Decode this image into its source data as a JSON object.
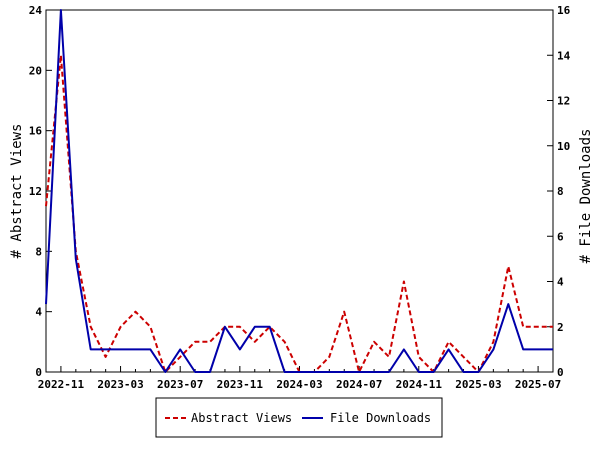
{
  "chart_data": {
    "type": "line",
    "x": [
      "2022-10",
      "2022-11",
      "2022-12",
      "2023-01",
      "2023-02",
      "2023-03",
      "2023-04",
      "2023-05",
      "2023-06",
      "2023-07",
      "2023-08",
      "2023-09",
      "2023-10",
      "2023-11",
      "2023-12",
      "2024-01",
      "2024-02",
      "2024-03",
      "2024-04",
      "2024-05",
      "2024-06",
      "2024-07",
      "2024-08",
      "2024-09",
      "2024-10",
      "2024-11",
      "2024-12",
      "2025-01",
      "2025-02",
      "2025-03",
      "2025-04",
      "2025-05",
      "2025-06",
      "2025-07",
      "2025-08"
    ],
    "x_ticks": [
      "2022-11",
      "2023-03",
      "2023-07",
      "2023-11",
      "2024-03",
      "2024-07",
      "2024-11",
      "2025-03",
      "2025-07"
    ],
    "series": [
      {
        "name": "Abstract Views",
        "axis": "left",
        "color": "#cc0000",
        "dash": true,
        "values": [
          11,
          21,
          8,
          3,
          1,
          3,
          4,
          3,
          0,
          1,
          2,
          2,
          3,
          3,
          2,
          3,
          2,
          0,
          0,
          1,
          4,
          0,
          2,
          1,
          6,
          1,
          0,
          2,
          1,
          0,
          2,
          7,
          3,
          3,
          3
        ]
      },
      {
        "name": "File Downloads",
        "axis": "right",
        "color": "#0000aa",
        "dash": false,
        "values": [
          3,
          16,
          5,
          1,
          1,
          1,
          1,
          1,
          0,
          1,
          0,
          0,
          2,
          1,
          2,
          2,
          0,
          0,
          0,
          0,
          0,
          0,
          0,
          0,
          1,
          0,
          0,
          1,
          0,
          0,
          1,
          3,
          1,
          1,
          1
        ]
      }
    ],
    "ylabel": "# Abstract Views",
    "ylabel_right": "# File Downloads",
    "ylim": [
      0,
      24
    ],
    "ylim_right": [
      0,
      16
    ],
    "yticks": [
      0,
      4,
      8,
      12,
      16,
      20,
      24
    ],
    "yticks_right": [
      0,
      2,
      4,
      6,
      8,
      10,
      12,
      14,
      16
    ],
    "grid": false,
    "legend_position": "bottom-center"
  }
}
